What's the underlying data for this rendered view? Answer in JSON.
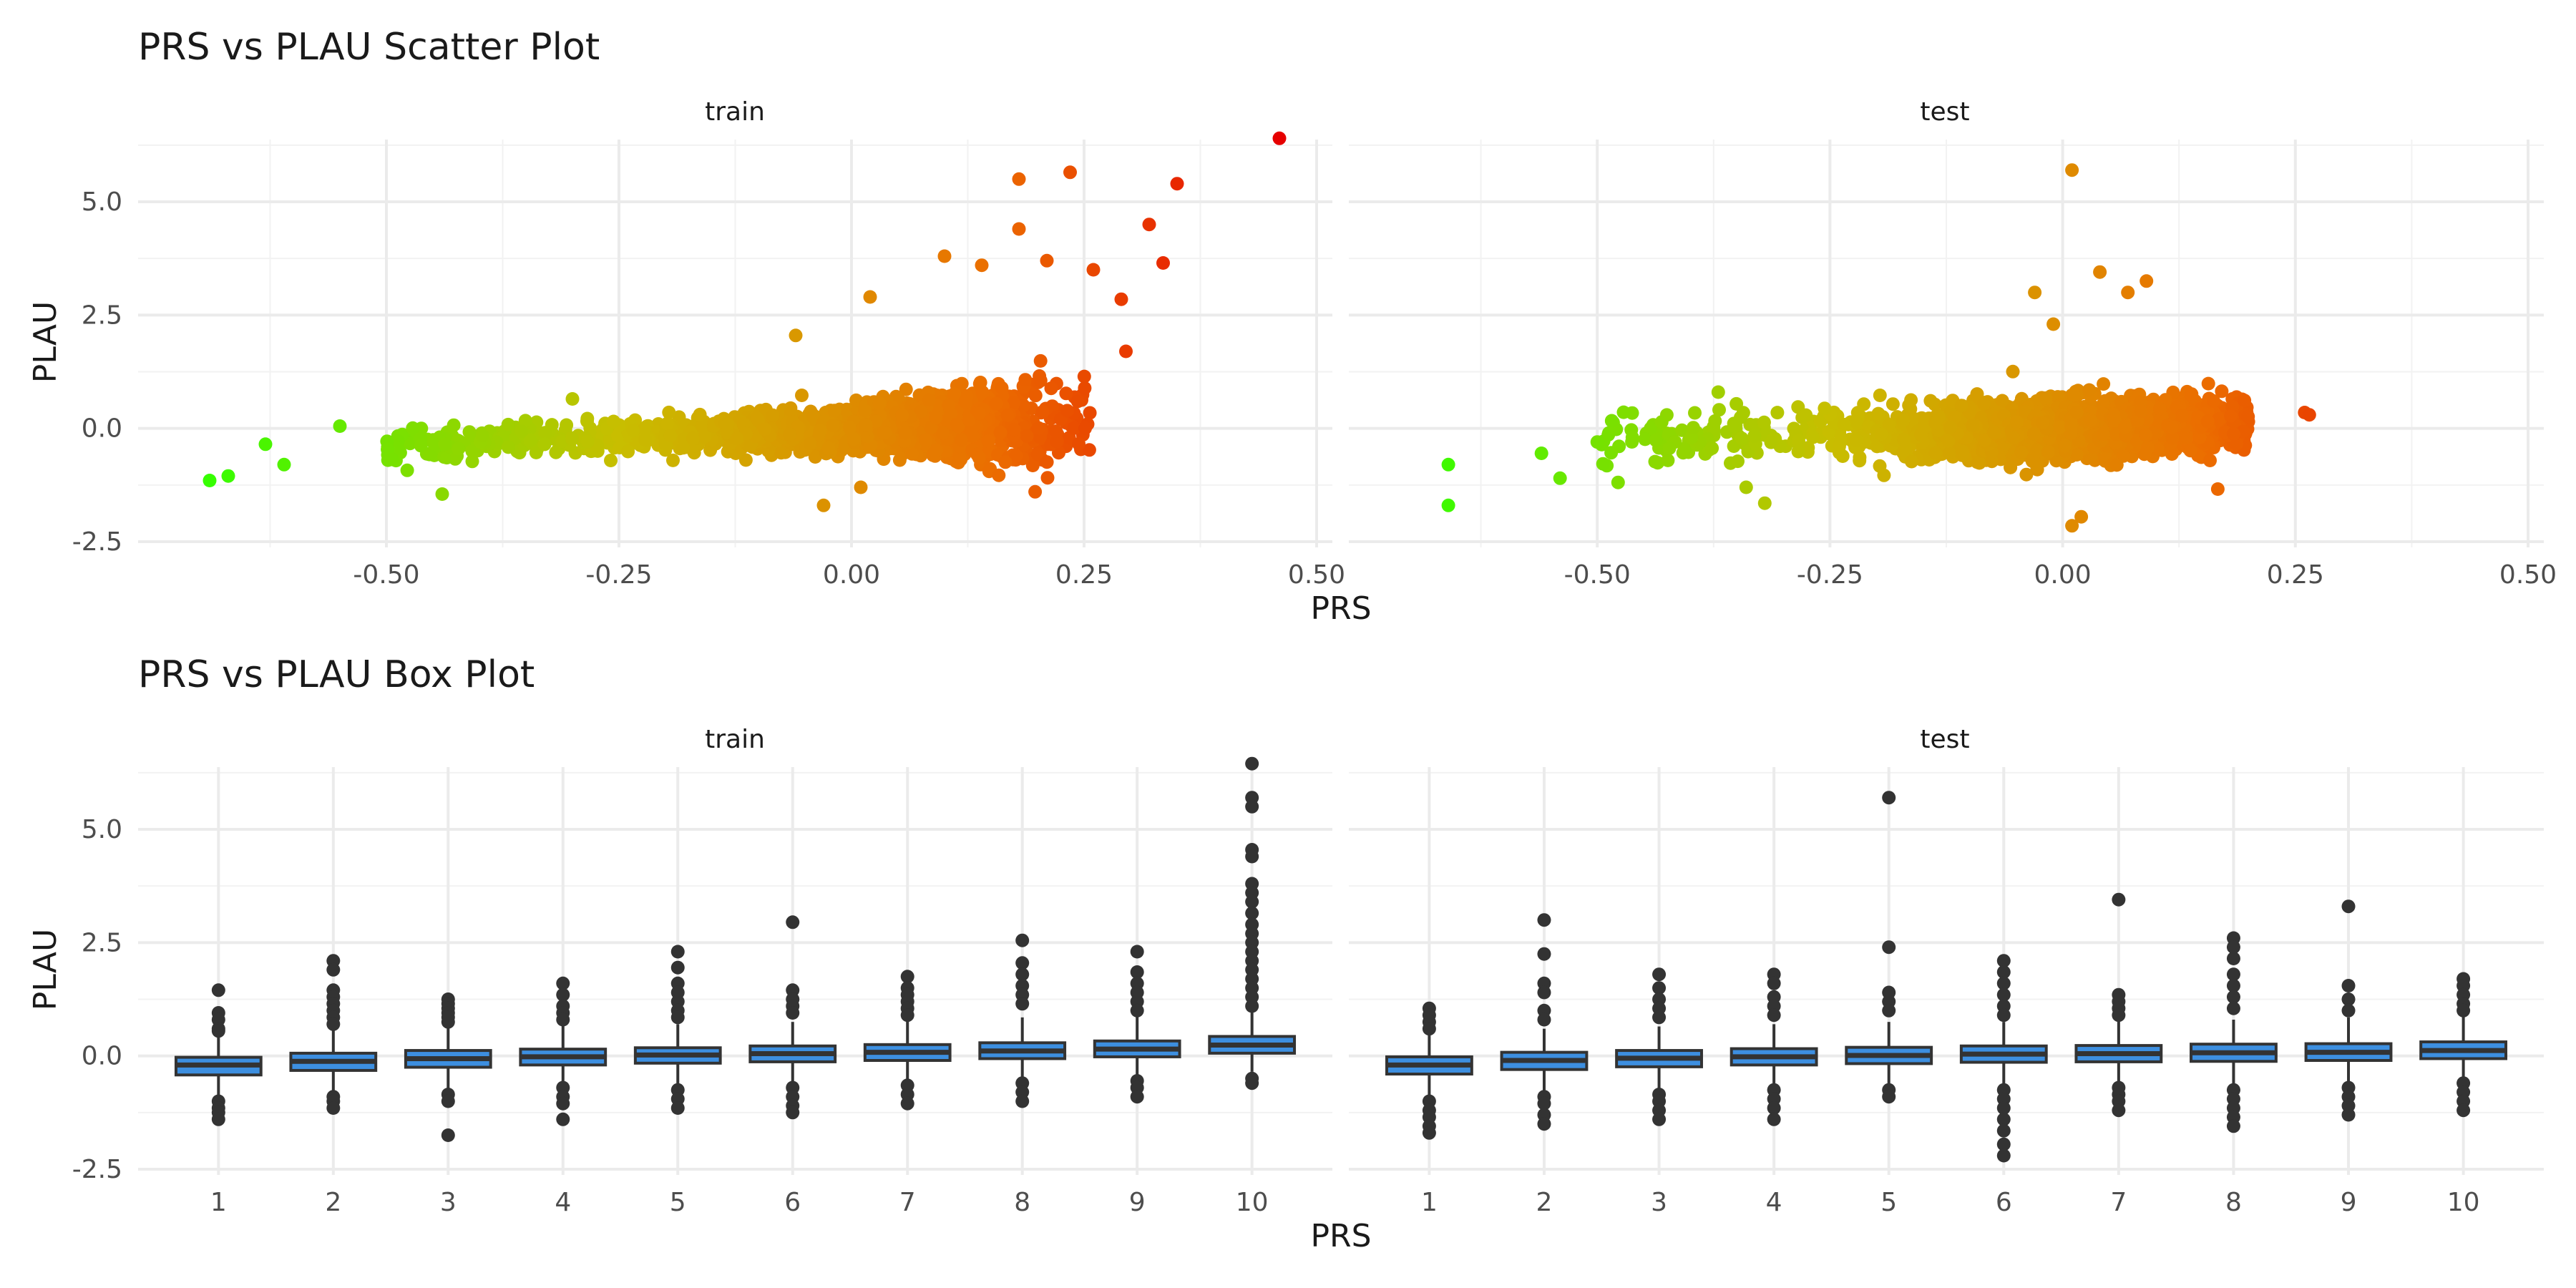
{
  "figure": {
    "scatter_title": "PRS vs PLAU Scatter Plot",
    "box_title": "PRS vs PLAU Box Plot",
    "facets": [
      "train",
      "test"
    ],
    "xlabel": "PRS",
    "ylabel": "PLAU",
    "colors": {
      "low": "#33ff00",
      "mid": "#c8b400",
      "high": "#e60000",
      "box_fill": "#3d8fe0",
      "box_line": "#333333",
      "grid": "#ebebeb"
    }
  },
  "chart_data": [
    {
      "type": "scatter",
      "title": "PRS vs PLAU Scatter Plot",
      "xlabel": "PRS",
      "ylabel": "PLAU",
      "xlim": [
        -0.75,
        0.5
      ],
      "ylim": [
        -2.5,
        6.5
      ],
      "x_ticks": [
        "-0.50",
        "-0.25",
        "0.00",
        "0.25",
        "0.50"
      ],
      "y_ticks": [
        "-2.5",
        "0.0",
        "2.5",
        "5.0"
      ],
      "color_scale": "PRS value, green (low) to red (high)",
      "grid": true,
      "facets": [
        {
          "name": "train",
          "outliers": [
            {
              "x": -0.69,
              "y": -1.15
            },
            {
              "x": -0.67,
              "y": -1.05
            },
            {
              "x": -0.63,
              "y": -0.35
            },
            {
              "x": -0.61,
              "y": -0.8
            },
            {
              "x": -0.55,
              "y": 0.05
            },
            {
              "x": -0.44,
              "y": -1.45
            },
            {
              "x": -0.3,
              "y": 0.65
            },
            {
              "x": -0.06,
              "y": 2.05
            },
            {
              "x": 0.01,
              "y": -1.3
            },
            {
              "x": -0.03,
              "y": -1.7
            },
            {
              "x": 0.02,
              "y": 2.9
            },
            {
              "x": 0.1,
              "y": 3.8
            },
            {
              "x": 0.14,
              "y": 3.6
            },
            {
              "x": 0.18,
              "y": 4.4
            },
            {
              "x": 0.18,
              "y": 5.5
            },
            {
              "x": 0.21,
              "y": 3.7
            },
            {
              "x": 0.235,
              "y": 5.65
            },
            {
              "x": 0.26,
              "y": 3.5
            },
            {
              "x": 0.29,
              "y": 2.85
            },
            {
              "x": 0.295,
              "y": 1.7
            },
            {
              "x": 0.32,
              "y": 4.5
            },
            {
              "x": 0.335,
              "y": 3.65
            },
            {
              "x": 0.35,
              "y": 5.4
            },
            {
              "x": 0.46,
              "y": 6.4
            }
          ]
        },
        {
          "name": "test",
          "outliers": [
            {
              "x": -0.66,
              "y": -0.8
            },
            {
              "x": -0.66,
              "y": -1.7
            },
            {
              "x": -0.56,
              "y": -0.55
            },
            {
              "x": -0.54,
              "y": -1.1
            },
            {
              "x": -0.5,
              "y": -0.3
            },
            {
              "x": -0.37,
              "y": 0.8
            },
            {
              "x": -0.34,
              "y": -1.3
            },
            {
              "x": -0.32,
              "y": -1.65
            },
            {
              "x": -0.03,
              "y": 3.0
            },
            {
              "x": -0.01,
              "y": 2.3
            },
            {
              "x": 0.01,
              "y": 5.7
            },
            {
              "x": 0.04,
              "y": 3.45
            },
            {
              "x": 0.07,
              "y": 3.0
            },
            {
              "x": 0.09,
              "y": 3.25
            },
            {
              "x": 0.01,
              "y": -2.15
            },
            {
              "x": 0.02,
              "y": -1.95
            },
            {
              "x": 0.26,
              "y": 0.35
            },
            {
              "x": 0.265,
              "y": 0.3
            }
          ]
        }
      ]
    },
    {
      "type": "box",
      "title": "PRS vs PLAU Box Plot",
      "xlabel": "PRS",
      "ylabel": "PLAU",
      "ylim": [
        -2.5,
        6.5
      ],
      "categories": [
        "1",
        "2",
        "3",
        "4",
        "5",
        "6",
        "7",
        "8",
        "9",
        "10"
      ],
      "y_ticks": [
        "-2.5",
        "0.0",
        "2.5",
        "5.0"
      ],
      "grid": true,
      "facets": [
        {
          "name": "train",
          "boxes": [
            {
              "q1": -0.42,
              "median": -0.2,
              "q3": -0.03,
              "wlo": -0.95,
              "whi": 0.5,
              "out": [
                1.45,
                0.95,
                0.8,
                0.6,
                0.55,
                -1.0,
                -1.15,
                -1.25,
                -1.4
              ]
            },
            {
              "q1": -0.32,
              "median": -0.12,
              "q3": 0.06,
              "wlo": -0.85,
              "whi": 0.6,
              "out": [
                2.1,
                1.9,
                1.45,
                1.3,
                1.15,
                1.0,
                0.85,
                0.7,
                -0.9,
                -1.0,
                -1.15
              ]
            },
            {
              "q1": -0.25,
              "median": -0.06,
              "q3": 0.12,
              "wlo": -0.8,
              "whi": 0.65,
              "out": [
                1.25,
                1.15,
                1.05,
                0.95,
                0.85,
                0.75,
                -0.85,
                -1.0,
                -1.75
              ]
            },
            {
              "q1": -0.2,
              "median": -0.02,
              "q3": 0.15,
              "wlo": -0.72,
              "whi": 0.7,
              "out": [
                1.6,
                1.35,
                1.1,
                0.95,
                0.8,
                -0.7,
                -0.9,
                -1.05,
                -1.4
              ]
            },
            {
              "q1": -0.16,
              "median": 0.02,
              "q3": 0.18,
              "wlo": -0.7,
              "whi": 0.7,
              "out": [
                2.3,
                1.95,
                1.6,
                1.4,
                1.2,
                1.0,
                0.85,
                -0.75,
                -0.95,
                -1.15
              ]
            },
            {
              "q1": -0.13,
              "median": 0.05,
              "q3": 0.22,
              "wlo": -0.65,
              "whi": 0.75,
              "out": [
                2.95,
                1.45,
                1.25,
                1.1,
                0.95,
                -0.7,
                -0.9,
                -1.1,
                -1.25
              ]
            },
            {
              "q1": -0.1,
              "median": 0.08,
              "q3": 0.25,
              "wlo": -0.6,
              "whi": 0.8,
              "out": [
                1.75,
                1.5,
                1.35,
                1.2,
                1.05,
                0.9,
                -0.65,
                -0.85,
                -1.05
              ]
            },
            {
              "q1": -0.06,
              "median": 0.11,
              "q3": 0.29,
              "wlo": -0.55,
              "whi": 0.85,
              "out": [
                2.55,
                2.05,
                1.8,
                1.55,
                1.35,
                1.15,
                -0.6,
                -0.8,
                -1.0
              ]
            },
            {
              "q1": -0.02,
              "median": 0.15,
              "q3": 0.33,
              "wlo": -0.5,
              "whi": 0.9,
              "out": [
                2.3,
                1.85,
                1.6,
                1.4,
                1.2,
                1.0,
                -0.55,
                -0.7,
                -0.9
              ]
            },
            {
              "q1": 0.06,
              "median": 0.24,
              "q3": 0.43,
              "wlo": -0.35,
              "whi": 1.0,
              "out": [
                6.45,
                5.7,
                5.5,
                4.55,
                4.4,
                3.8,
                3.6,
                3.4,
                3.15,
                2.9,
                2.7,
                2.5,
                2.3,
                2.1,
                1.9,
                1.7,
                1.5,
                1.3,
                1.1,
                -0.5,
                -0.6
              ]
            }
          ]
        },
        {
          "name": "test",
          "boxes": [
            {
              "q1": -0.4,
              "median": -0.2,
              "q3": -0.02,
              "wlo": -0.95,
              "whi": 0.5,
              "out": [
                1.05,
                0.9,
                0.75,
                0.6,
                -1.0,
                -1.2,
                -1.35,
                -1.55,
                -1.7
              ]
            },
            {
              "q1": -0.3,
              "median": -0.1,
              "q3": 0.08,
              "wlo": -0.85,
              "whi": 0.6,
              "out": [
                3.0,
                2.25,
                1.6,
                1.4,
                1.0,
                0.8,
                -0.9,
                -1.05,
                -1.3,
                -1.5
              ]
            },
            {
              "q1": -0.24,
              "median": -0.05,
              "q3": 0.12,
              "wlo": -0.8,
              "whi": 0.65,
              "out": [
                1.8,
                1.5,
                1.25,
                1.05,
                0.85,
                -0.85,
                -1.0,
                -1.2,
                -1.4
              ]
            },
            {
              "q1": -0.2,
              "median": -0.02,
              "q3": 0.16,
              "wlo": -0.75,
              "whi": 0.7,
              "out": [
                1.8,
                1.6,
                1.3,
                1.1,
                0.9,
                -0.75,
                -0.95,
                -1.15,
                -1.4
              ]
            },
            {
              "q1": -0.17,
              "median": 0.01,
              "q3": 0.19,
              "wlo": -0.7,
              "whi": 0.75,
              "out": [
                5.7,
                2.4,
                1.4,
                1.2,
                1.0,
                -0.75,
                -0.9
              ]
            },
            {
              "q1": -0.14,
              "median": 0.04,
              "q3": 0.22,
              "wlo": -0.7,
              "whi": 0.75,
              "out": [
                2.1,
                1.85,
                1.6,
                1.35,
                1.1,
                0.9,
                -0.75,
                -0.95,
                -1.15,
                -1.4,
                -1.65,
                -1.95,
                -2.2
              ]
            },
            {
              "q1": -0.13,
              "median": 0.05,
              "q3": 0.23,
              "wlo": -0.65,
              "whi": 0.8,
              "out": [
                3.45,
                1.35,
                1.2,
                1.05,
                0.9,
                -0.7,
                -0.85,
                -1.0,
                -1.2
              ]
            },
            {
              "q1": -0.12,
              "median": 0.07,
              "q3": 0.26,
              "wlo": -0.65,
              "whi": 0.8,
              "out": [
                2.6,
                2.4,
                2.15,
                1.8,
                1.55,
                1.3,
                1.05,
                -0.75,
                -0.95,
                -1.15,
                -1.35,
                -1.55
              ]
            },
            {
              "q1": -0.1,
              "median": 0.08,
              "q3": 0.27,
              "wlo": -0.6,
              "whi": 0.85,
              "out": [
                3.3,
                1.55,
                1.25,
                1.0,
                -0.7,
                -0.9,
                -1.1,
                -1.3
              ]
            },
            {
              "q1": -0.06,
              "median": 0.12,
              "q3": 0.31,
              "wlo": -0.55,
              "whi": 0.9,
              "out": [
                1.7,
                1.55,
                1.35,
                1.15,
                1.0,
                -0.6,
                -0.8,
                -1.0,
                -1.2
              ]
            }
          ]
        }
      ]
    }
  ]
}
